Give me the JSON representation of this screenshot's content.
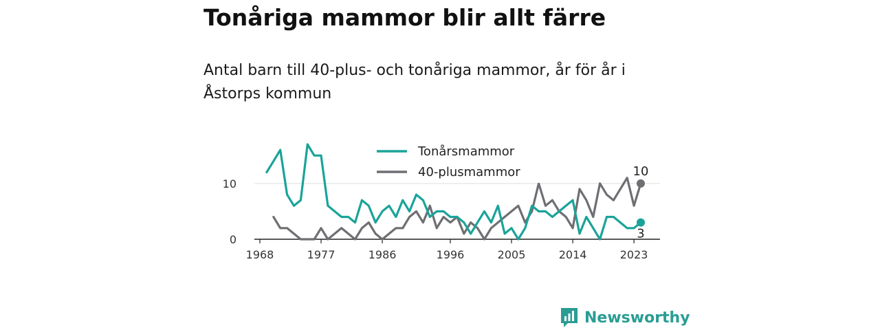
{
  "header": {
    "title": "Tonåriga mammor blir allt färre",
    "subtitle": "Antal barn till 40-plus- och tonåriga mammor, år för år i Åstorps kommun"
  },
  "brand": {
    "name": "Newsworthy",
    "icon": "newsworthy-logo-icon",
    "color": "#2a9d93"
  },
  "chart_data": {
    "type": "line",
    "xlim": [
      1968,
      2024
    ],
    "ylim": [
      0,
      17
    ],
    "x_ticks": [
      1968,
      1977,
      1986,
      1996,
      2005,
      2014,
      2023
    ],
    "y_ticks": [
      0,
      10
    ],
    "grid": "horizontal",
    "legend": "top-center",
    "series": [
      {
        "name": "Tonårsmammor",
        "color": "#1aa399",
        "end_label": "3",
        "x": [
          1969,
          1970,
          1971,
          1972,
          1973,
          1974,
          1975,
          1976,
          1977,
          1978,
          1979,
          1980,
          1981,
          1982,
          1983,
          1984,
          1985,
          1986,
          1987,
          1988,
          1989,
          1990,
          1991,
          1992,
          1993,
          1994,
          1995,
          1996,
          1997,
          1998,
          1999,
          2000,
          2001,
          2002,
          2003,
          2004,
          2005,
          2006,
          2007,
          2008,
          2009,
          2010,
          2011,
          2012,
          2013,
          2014,
          2015,
          2016,
          2017,
          2018,
          2019,
          2020,
          2021,
          2022,
          2023,
          2024
        ],
        "values": [
          12,
          14,
          16,
          8,
          6,
          7,
          17,
          15,
          15,
          6,
          5,
          4,
          4,
          3,
          7,
          6,
          3,
          5,
          6,
          4,
          7,
          5,
          8,
          7,
          4,
          5,
          5,
          4,
          4,
          3,
          1,
          3,
          5,
          3,
          6,
          1,
          2,
          0,
          2,
          6,
          5,
          5,
          4,
          5,
          6,
          7,
          1,
          4,
          2,
          0,
          4,
          4,
          3,
          2,
          2,
          3
        ]
      },
      {
        "name": "40-plusmammor",
        "color": "#6e6e73",
        "end_label": "10",
        "x": [
          1970,
          1971,
          1972,
          1973,
          1974,
          1975,
          1976,
          1977,
          1978,
          1979,
          1980,
          1981,
          1982,
          1983,
          1984,
          1985,
          1986,
          1987,
          1988,
          1989,
          1990,
          1991,
          1992,
          1993,
          1994,
          1995,
          1996,
          1997,
          1998,
          1999,
          2000,
          2001,
          2002,
          2003,
          2004,
          2005,
          2006,
          2007,
          2008,
          2009,
          2010,
          2011,
          2012,
          2013,
          2014,
          2015,
          2016,
          2017,
          2018,
          2019,
          2020,
          2021,
          2022,
          2023,
          2024
        ],
        "values": [
          4,
          2,
          2,
          1,
          0,
          0,
          0,
          2,
          0,
          1,
          2,
          1,
          0,
          2,
          3,
          1,
          0,
          1,
          2,
          2,
          4,
          5,
          3,
          6,
          2,
          4,
          3,
          4,
          1,
          3,
          2,
          0,
          2,
          3,
          4,
          5,
          6,
          3,
          5,
          10,
          6,
          7,
          5,
          4,
          2,
          9,
          7,
          4,
          10,
          8,
          7,
          9,
          11,
          6,
          10
        ]
      }
    ]
  }
}
